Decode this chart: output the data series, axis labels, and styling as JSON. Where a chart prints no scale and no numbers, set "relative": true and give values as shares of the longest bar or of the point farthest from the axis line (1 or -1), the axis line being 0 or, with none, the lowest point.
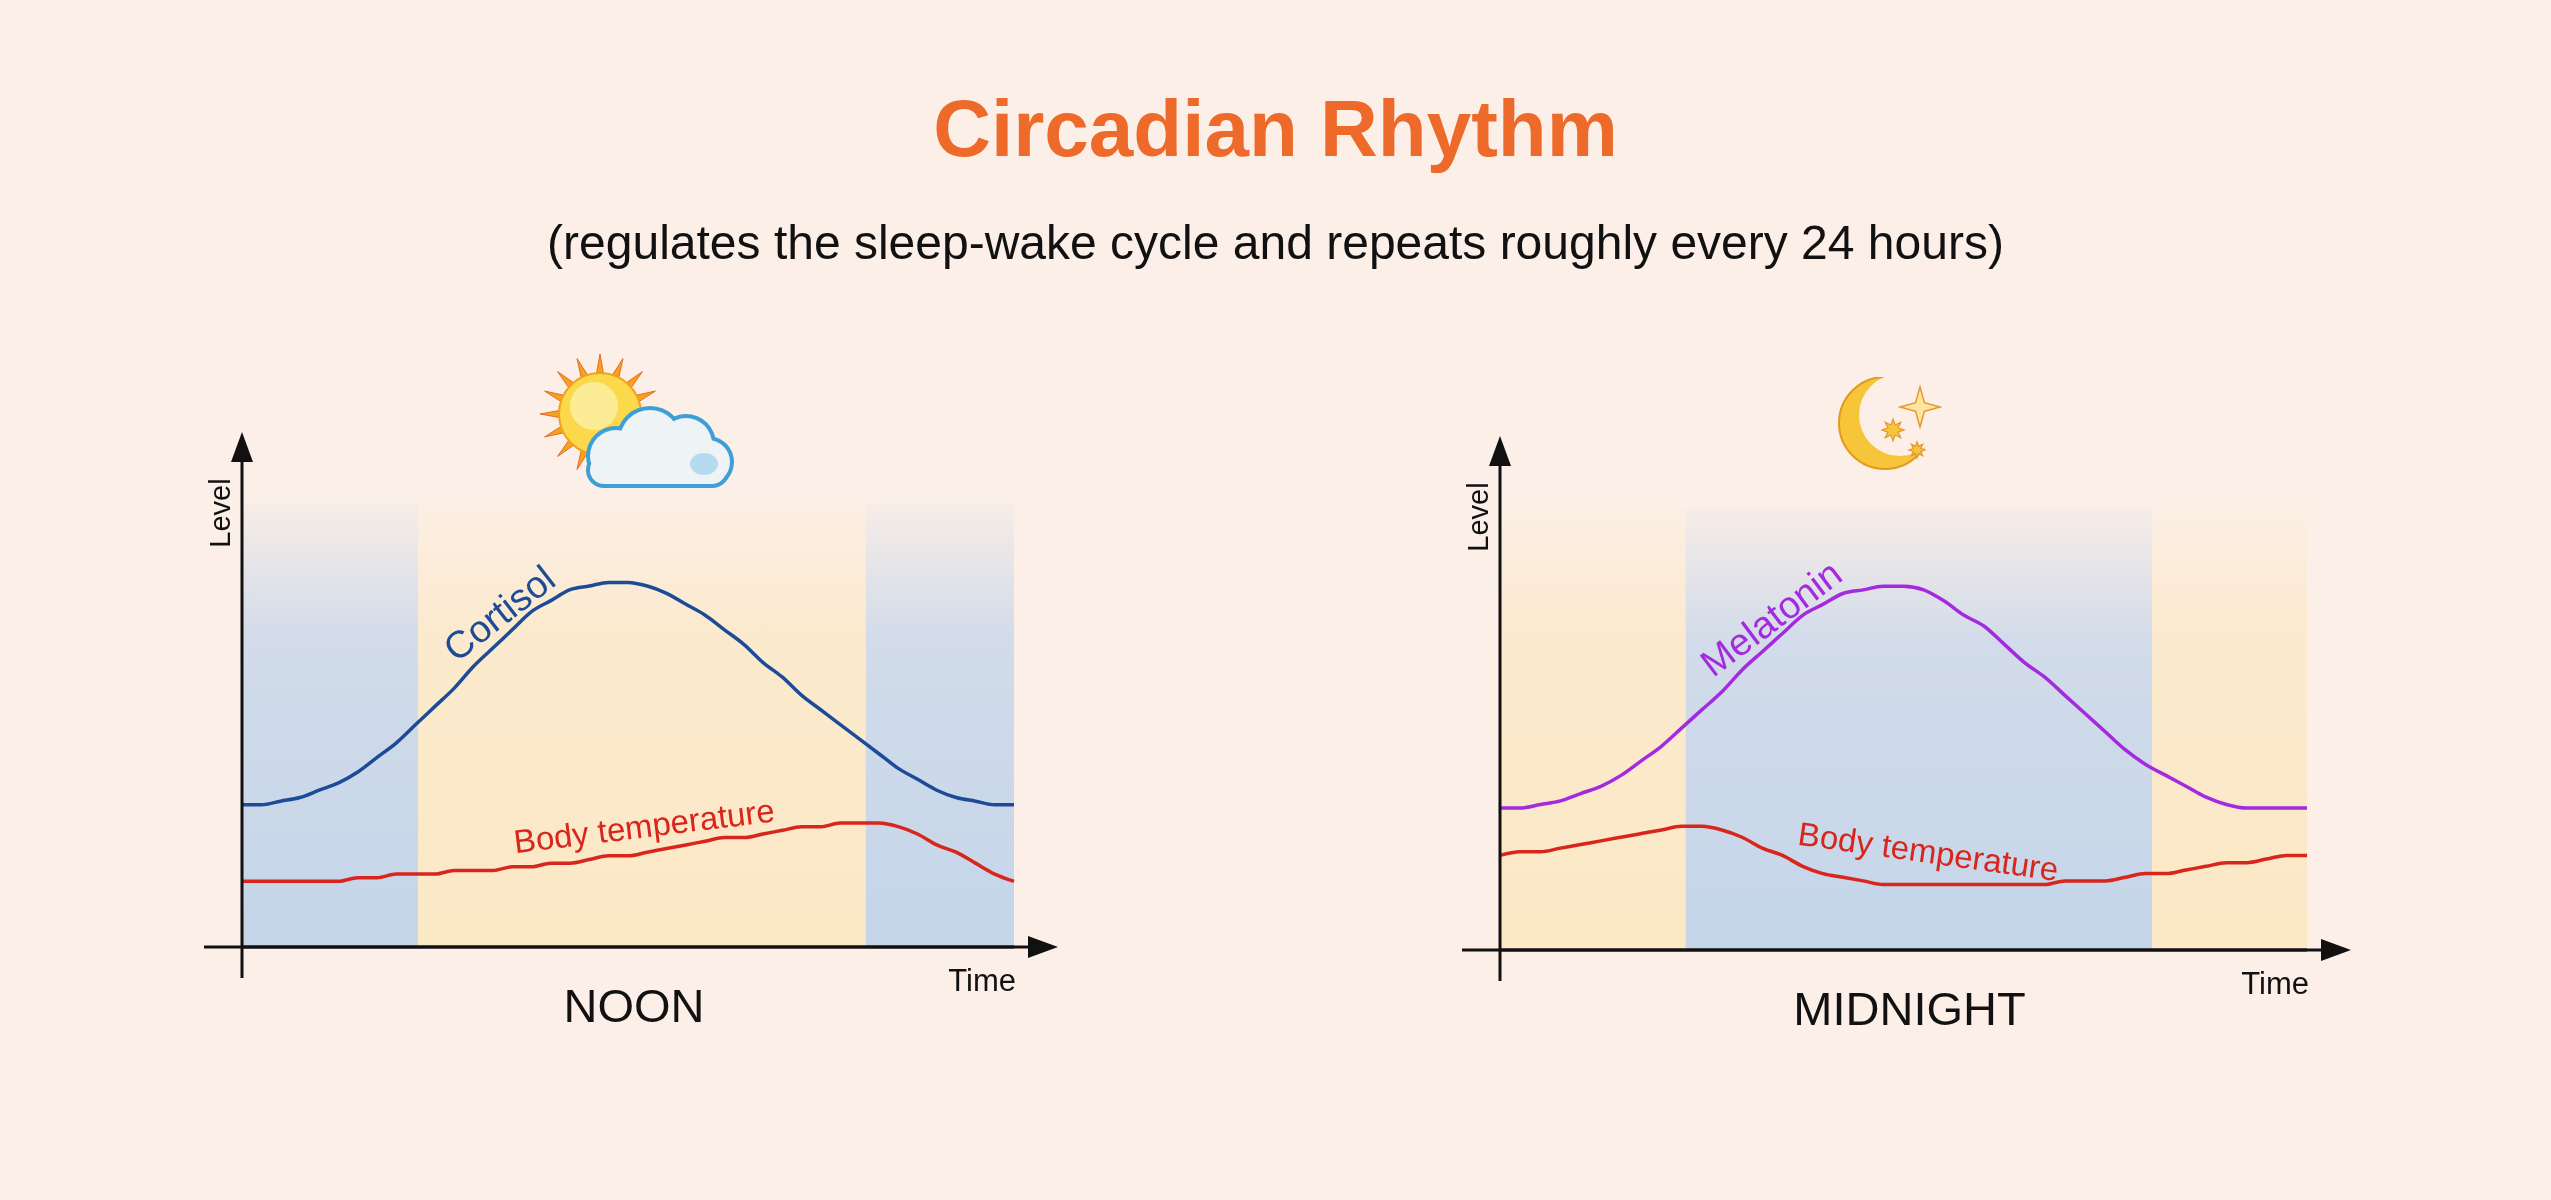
{
  "chart_data": [
    {
      "type": "line",
      "title": "Circadian Rhythm",
      "subtitle": "(regulates the sleep-wake cycle and repeats roughly every 24 hours)",
      "xlabel": "Time",
      "ylabel": "Level",
      "relative": true,
      "annotations": [
        "NOON"
      ],
      "categories": [
        null,
        null,
        null,
        null,
        null,
        null,
        null,
        null,
        null,
        null,
        null,
        null,
        null,
        null,
        null,
        null,
        null,
        null,
        null,
        null,
        null,
        null,
        null,
        null,
        null,
        null,
        null,
        null,
        null,
        null,
        null,
        null,
        null,
        null,
        null,
        null,
        null,
        null,
        null,
        null,
        null
      ],
      "series": [
        {
          "name": "Cortisol",
          "color": "#1c4b97",
          "values": [
            0.39,
            0.39,
            0.4,
            0.41,
            0.43,
            0.45,
            0.48,
            0.52,
            0.56,
            0.61,
            0.66,
            0.71,
            0.77,
            0.82,
            0.87,
            0.92,
            0.95,
            0.98,
            0.99,
            1,
            1,
            0.99,
            0.97,
            0.94,
            0.91,
            0.87,
            0.83,
            0.78,
            0.74,
            0.69,
            0.65,
            0.61,
            0.57,
            0.53,
            0.49,
            0.46,
            0.43,
            0.41,
            0.4,
            0.39,
            0.39
          ]
        },
        {
          "name": "Body temperature",
          "color": "#d9261c",
          "values": [
            0.18,
            0.18,
            0.18,
            0.18,
            0.18,
            0.18,
            0.19,
            0.19,
            0.2,
            0.2,
            0.2,
            0.21,
            0.21,
            0.21,
            0.22,
            0.22,
            0.23,
            0.23,
            0.24,
            0.25,
            0.25,
            0.26,
            0.27,
            0.28,
            0.29,
            0.3,
            0.3,
            0.31,
            0.32,
            0.33,
            0.33,
            0.34,
            0.34,
            0.34,
            0.33,
            0.31,
            0.28,
            0.26,
            0.23,
            0.2,
            0.18
          ]
        }
      ]
    },
    {
      "type": "line",
      "xlabel": "Time",
      "ylabel": "Level",
      "relative": true,
      "annotations": [
        "MIDNIGHT"
      ],
      "categories": [
        null,
        null,
        null,
        null,
        null,
        null,
        null,
        null,
        null,
        null,
        null,
        null,
        null,
        null,
        null,
        null,
        null,
        null,
        null,
        null,
        null,
        null,
        null,
        null,
        null,
        null,
        null,
        null,
        null,
        null,
        null,
        null,
        null,
        null,
        null,
        null,
        null,
        null,
        null,
        null,
        null
      ],
      "series": [
        {
          "name": "Melatonin",
          "color": "#a42ae0",
          "values": [
            0.39,
            0.39,
            0.4,
            0.41,
            0.43,
            0.45,
            0.48,
            0.52,
            0.56,
            0.61,
            0.66,
            0.71,
            0.77,
            0.82,
            0.87,
            0.92,
            0.95,
            0.98,
            0.99,
            1,
            1,
            0.99,
            0.96,
            0.92,
            0.89,
            0.84,
            0.79,
            0.75,
            0.7,
            0.65,
            0.6,
            0.55,
            0.51,
            0.48,
            0.45,
            0.42,
            0.4,
            0.39,
            0.39,
            0.39,
            0.39
          ]
        },
        {
          "name": "Body temperature",
          "color": "#d9261c",
          "values": [
            0.26,
            0.27,
            0.27,
            0.28,
            0.29,
            0.3,
            0.31,
            0.32,
            0.33,
            0.34,
            0.34,
            0.33,
            0.31,
            0.28,
            0.26,
            0.23,
            0.21,
            0.2,
            0.19,
            0.18,
            0.18,
            0.18,
            0.18,
            0.18,
            0.18,
            0.18,
            0.18,
            0.18,
            0.19,
            0.19,
            0.19,
            0.2,
            0.21,
            0.21,
            0.22,
            0.23,
            0.24,
            0.24,
            0.25,
            0.26,
            0.26
          ]
        }
      ]
    }
  ]
}
